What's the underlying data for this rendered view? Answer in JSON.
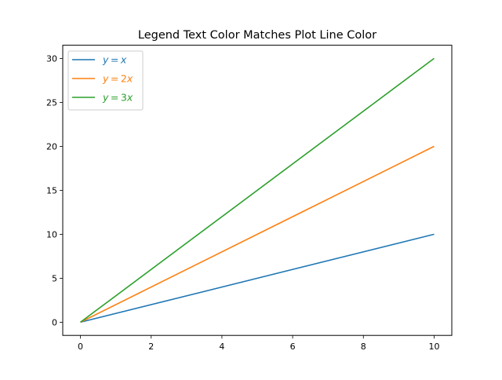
{
  "chart_data": {
    "type": "line",
    "title": "Legend Text Color Matches Plot Line Color",
    "xlabel": "",
    "ylabel": "",
    "xlim": [
      -0.5,
      10.5
    ],
    "ylim": [
      -1.5,
      31.5
    ],
    "xticks": [
      0,
      2,
      4,
      6,
      8,
      10
    ],
    "yticks": [
      0,
      5,
      10,
      15,
      20,
      25,
      30
    ],
    "grid": false,
    "legend_placement": "upper-left",
    "legend_text_matches_line_color": true,
    "x": [
      0,
      10
    ],
    "series": [
      {
        "name": "y = x",
        "label_var": "y",
        "label_rhs": "x",
        "values": [
          0,
          10
        ],
        "color": "#1f77b4"
      },
      {
        "name": "y = 2x",
        "label_var": "y",
        "label_rhs": "2x",
        "values": [
          0,
          20
        ],
        "color": "#ff7f0e"
      },
      {
        "name": "y = 3x",
        "label_var": "y",
        "label_rhs": "3x",
        "values": [
          0,
          30
        ],
        "color": "#2ca02c"
      }
    ]
  }
}
